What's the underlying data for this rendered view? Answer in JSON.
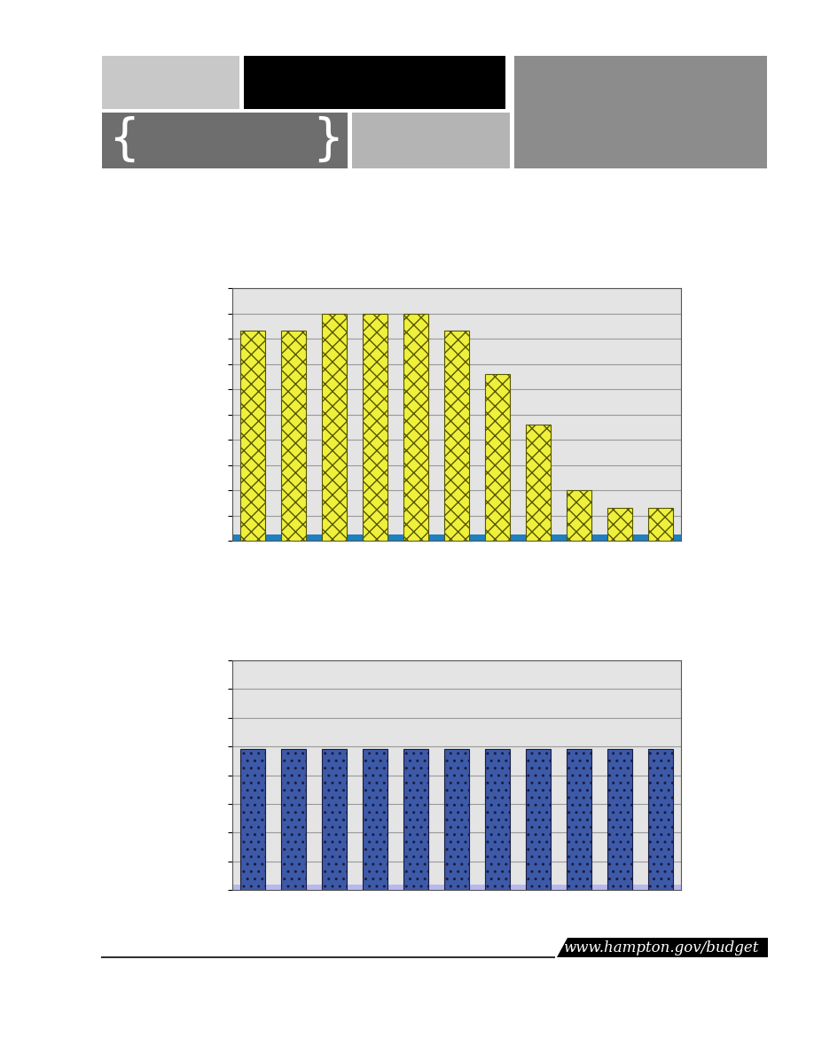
{
  "chart_data": [
    {
      "type": "bar",
      "categories": [
        null,
        null,
        null,
        null,
        null,
        null,
        null,
        null,
        null,
        null,
        null
      ],
      "values": [
        8.3,
        8.3,
        9.0,
        9.0,
        9.0,
        8.3,
        6.6,
        4.6,
        2.0,
        1.3,
        1.3
      ],
      "color": "#eef03c",
      "ylim": [
        0,
        10
      ],
      "yticks": [
        0,
        1,
        2,
        3,
        4,
        5,
        6,
        7,
        8,
        9,
        10
      ],
      "grid": true,
      "tick_labels": false
    },
    {
      "type": "bar",
      "categories": [
        null,
        null,
        null,
        null,
        null,
        null,
        null,
        null,
        null,
        null,
        null
      ],
      "values": [
        4.9,
        4.9,
        4.9,
        4.9,
        4.9,
        4.9,
        4.9,
        4.9,
        4.9,
        4.9,
        4.9
      ],
      "color": "#3d5aa8",
      "ylim": [
        0,
        8
      ],
      "yticks": [
        0,
        1,
        2,
        3,
        4,
        5,
        6,
        7,
        8
      ],
      "grid": true,
      "tick_labels": false
    }
  ],
  "header": {
    "left_bracket": "{",
    "right_bracket": "}"
  },
  "footer": {
    "url": "www.hampton.gov/budget"
  }
}
